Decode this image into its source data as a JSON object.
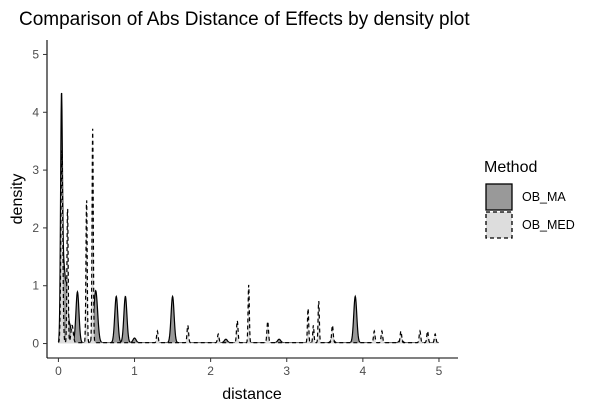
{
  "chart_data": {
    "type": "area",
    "title": "Comparison of Abs Distance of Effects by density plot",
    "xlabel": "distance",
    "ylabel": "density",
    "xlim": [
      -0.15,
      5.25
    ],
    "ylim": [
      -0.25,
      5.25
    ],
    "x_ticks": [
      0,
      1,
      2,
      3,
      4,
      5
    ],
    "y_ticks": [
      0,
      1,
      2,
      3,
      4,
      5
    ],
    "grid": false,
    "legend": {
      "title": "Method",
      "position": "right"
    },
    "series": [
      {
        "name": "OB_MA",
        "fill": "#999999",
        "line_style": "solid",
        "peaks": [
          {
            "x": 0.04,
            "y": 4.0,
            "w": 0.012
          },
          {
            "x": 0.06,
            "y": 0.75,
            "w": 0.015
          },
          {
            "x": 0.08,
            "y": 0.85,
            "w": 0.015
          },
          {
            "x": 0.11,
            "y": 0.85,
            "w": 0.015
          },
          {
            "x": 0.15,
            "y": 0.3,
            "w": 0.02
          },
          {
            "x": 0.25,
            "y": 0.88,
            "w": 0.02
          },
          {
            "x": 0.49,
            "y": 0.9,
            "w": 0.025
          },
          {
            "x": 0.76,
            "y": 0.8,
            "w": 0.02
          },
          {
            "x": 0.88,
            "y": 0.8,
            "w": 0.02
          },
          {
            "x": 1.5,
            "y": 0.8,
            "w": 0.02
          },
          {
            "x": 3.9,
            "y": 0.8,
            "w": 0.02
          },
          {
            "x": 1.0,
            "y": 0.08,
            "w": 0.02
          },
          {
            "x": 2.2,
            "y": 0.06,
            "w": 0.02
          },
          {
            "x": 2.9,
            "y": 0.06,
            "w": 0.02
          },
          {
            "x": 3.6,
            "y": 0.07,
            "w": 0.02
          },
          {
            "x": 4.5,
            "y": 0.06,
            "w": 0.02
          }
        ]
      },
      {
        "name": "OB_MED",
        "fill": "#dddddd",
        "line_style": "dashed",
        "peaks": [
          {
            "x": 0.045,
            "y": 3.35,
            "w": 0.012
          },
          {
            "x": 0.12,
            "y": 2.35,
            "w": 0.008
          },
          {
            "x": 0.37,
            "y": 2.5,
            "w": 0.008
          },
          {
            "x": 0.45,
            "y": 3.7,
            "w": 0.008
          },
          {
            "x": 0.18,
            "y": 0.3,
            "w": 0.015
          },
          {
            "x": 1.3,
            "y": 0.2,
            "w": 0.01
          },
          {
            "x": 1.7,
            "y": 0.3,
            "w": 0.01
          },
          {
            "x": 2.1,
            "y": 0.15,
            "w": 0.01
          },
          {
            "x": 2.35,
            "y": 0.38,
            "w": 0.01
          },
          {
            "x": 2.5,
            "y": 1.0,
            "w": 0.008
          },
          {
            "x": 2.75,
            "y": 0.37,
            "w": 0.01
          },
          {
            "x": 3.28,
            "y": 0.6,
            "w": 0.008
          },
          {
            "x": 3.35,
            "y": 0.3,
            "w": 0.008
          },
          {
            "x": 3.42,
            "y": 0.73,
            "w": 0.008
          },
          {
            "x": 3.6,
            "y": 0.3,
            "w": 0.01
          },
          {
            "x": 4.15,
            "y": 0.2,
            "w": 0.01
          },
          {
            "x": 4.25,
            "y": 0.2,
            "w": 0.01
          },
          {
            "x": 4.5,
            "y": 0.2,
            "w": 0.01
          },
          {
            "x": 4.75,
            "y": 0.2,
            "w": 0.01
          },
          {
            "x": 4.85,
            "y": 0.2,
            "w": 0.01
          },
          {
            "x": 4.95,
            "y": 0.15,
            "w": 0.01
          }
        ]
      }
    ]
  }
}
